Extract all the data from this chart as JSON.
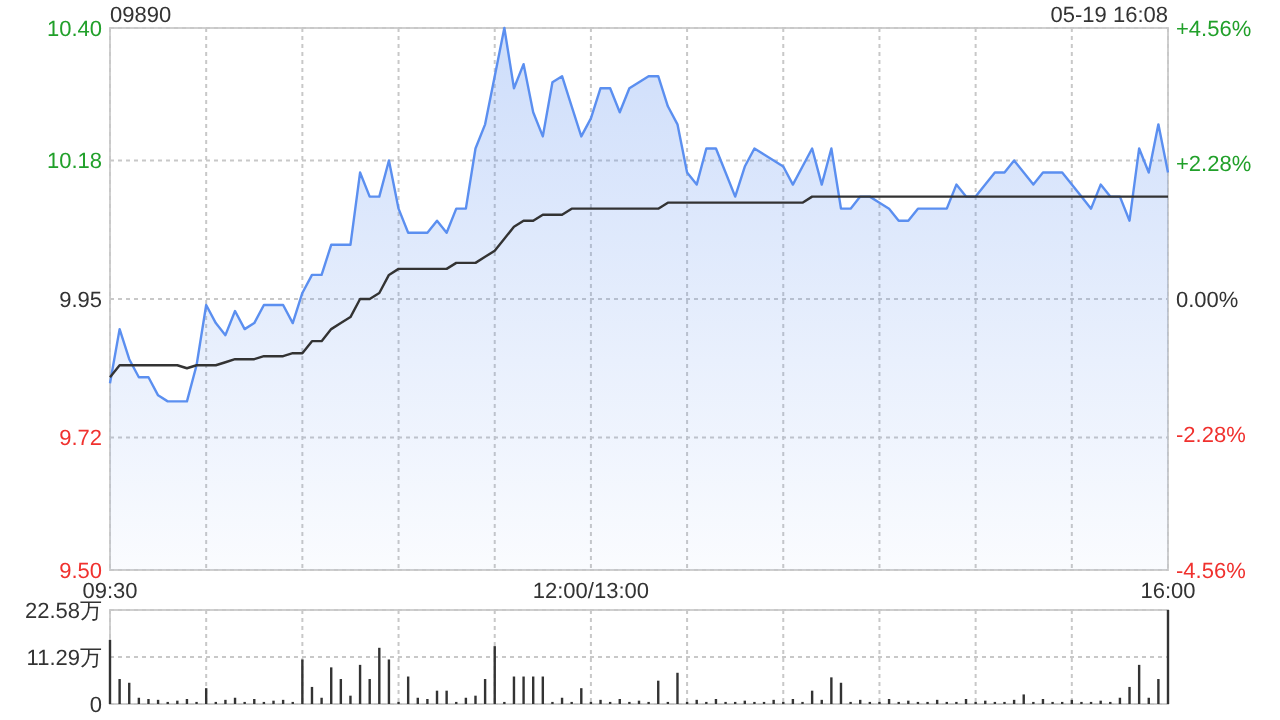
{
  "chart_data": [
    {
      "type": "area",
      "title": "09890",
      "annotations": [
        "05-19 16:08"
      ],
      "categories": [
        "09:30",
        null,
        null,
        null,
        null,
        null,
        null,
        null,
        null,
        null,
        null,
        null,
        null,
        null,
        null,
        null,
        null,
        null,
        null,
        null,
        null,
        null,
        null,
        null,
        null,
        null,
        null,
        null,
        null,
        null,
        null,
        null,
        null,
        null,
        null,
        null,
        null,
        null,
        null,
        null,
        null,
        null,
        null,
        null,
        null,
        null,
        null,
        null,
        null,
        null,
        "12:00/13:00",
        null,
        null,
        null,
        null,
        null,
        null,
        null,
        null,
        null,
        null,
        null,
        null,
        null,
        null,
        null,
        null,
        null,
        null,
        null,
        null,
        null,
        null,
        null,
        null,
        null,
        null,
        null,
        null,
        null,
        null,
        null,
        null,
        null,
        null,
        null,
        null,
        null,
        null,
        null,
        null,
        null,
        null,
        null,
        null,
        null,
        null,
        null,
        null,
        null,
        null,
        null,
        null,
        null,
        null,
        null,
        null,
        null,
        null,
        null,
        "16:00"
      ],
      "ylim": [
        9.5,
        10.4
      ],
      "yticks": [
        {
          "value": 9.5,
          "label": "9.50"
        },
        9.72,
        9.95,
        10.18,
        {
          "value": 10.4,
          "label": "10.40"
        }
      ],
      "y2lim": [
        -4.56,
        4.56
      ],
      "y2ticks": [
        {
          "value": -4.56,
          "label": "-4.56%"
        },
        {
          "value": -2.28,
          "label": "-2.28%"
        },
        {
          "value": 0,
          "label": "0.00%"
        },
        {
          "value": 2.28,
          "label": "+2.28%"
        },
        {
          "value": 4.56,
          "label": "+4.56%"
        }
      ],
      "grid": true,
      "series": [
        {
          "type": "area",
          "color": "#5b8ff0",
          "values": [
            9.81,
            9.9,
            9.85,
            9.82,
            9.82,
            9.79,
            9.78,
            9.78,
            9.78,
            9.84,
            9.94,
            9.91,
            9.89,
            9.93,
            9.9,
            9.91,
            9.94,
            9.94,
            9.94,
            9.91,
            9.96,
            9.99,
            9.99,
            10.04,
            10.04,
            10.04,
            10.16,
            10.12,
            10.12,
            10.18,
            10.1,
            10.06,
            10.06,
            10.06,
            10.08,
            10.06,
            10.1,
            10.1,
            10.2,
            10.24,
            10.32,
            10.4,
            10.3,
            10.34,
            10.26,
            10.22,
            10.31,
            10.32,
            10.27,
            10.22,
            10.25,
            10.3,
            10.3,
            10.26,
            10.3,
            10.31,
            10.32,
            10.32,
            10.27,
            10.24,
            10.16,
            10.14,
            10.2,
            10.2,
            10.16,
            10.12,
            10.17,
            10.2,
            10.19,
            10.18,
            10.17,
            10.14,
            10.17,
            10.2,
            10.14,
            10.2,
            10.1,
            10.1,
            10.12,
            10.12,
            10.11,
            10.1,
            10.08,
            10.08,
            10.1,
            10.1,
            10.1,
            10.1,
            10.14,
            10.12,
            10.12,
            10.14,
            10.16,
            10.16,
            10.18,
            10.16,
            10.14,
            10.16,
            10.16,
            10.16,
            10.14,
            10.12,
            10.1,
            10.14,
            10.12,
            10.12,
            10.08,
            10.2,
            10.16,
            10.24,
            10.16
          ]
        },
        {
          "type": "line",
          "color": "#333333",
          "values": [
            9.82,
            9.84,
            9.84,
            9.84,
            9.84,
            9.84,
            9.84,
            9.84,
            9.835,
            9.84,
            9.84,
            9.84,
            9.845,
            9.85,
            9.85,
            9.85,
            9.855,
            9.855,
            9.855,
            9.86,
            9.86,
            9.88,
            9.88,
            9.9,
            9.91,
            9.92,
            9.95,
            9.95,
            9.96,
            9.99,
            10.0,
            10.0,
            10.0,
            10.0,
            10.0,
            10.0,
            10.01,
            10.01,
            10.01,
            10.02,
            10.03,
            10.05,
            10.07,
            10.08,
            10.08,
            10.09,
            10.09,
            10.09,
            10.1,
            10.1,
            10.1,
            10.1,
            10.1,
            10.1,
            10.1,
            10.1,
            10.1,
            10.1,
            10.11,
            10.11,
            10.11,
            10.11,
            10.11,
            10.11,
            10.11,
            10.11,
            10.11,
            10.11,
            10.11,
            10.11,
            10.11,
            10.11,
            10.11,
            10.12,
            10.12,
            10.12,
            10.12,
            10.12,
            10.12,
            10.12,
            10.12,
            10.12,
            10.12,
            10.12,
            10.12,
            10.12,
            10.12,
            10.12,
            10.12,
            10.12,
            10.12,
            10.12,
            10.12,
            10.12,
            10.12,
            10.12,
            10.12,
            10.12,
            10.12,
            10.12,
            10.12,
            10.12,
            10.12,
            10.12,
            10.12,
            10.12,
            10.12,
            10.12,
            10.12,
            10.12,
            10.12
          ]
        }
      ]
    },
    {
      "type": "bar",
      "color": "#333333",
      "categories": [
        null,
        null,
        null,
        null,
        null,
        null,
        null,
        null,
        null,
        null,
        null,
        null,
        null,
        null,
        null,
        null,
        null,
        null,
        null,
        null,
        null,
        null,
        null,
        null,
        null,
        null,
        null,
        null,
        null,
        null,
        null,
        null,
        null,
        null,
        null,
        null,
        null,
        null,
        null,
        null,
        null,
        null,
        null,
        null,
        null,
        null,
        null,
        null,
        null,
        null,
        null,
        null,
        null,
        null,
        null,
        null,
        null,
        null,
        null,
        null,
        null,
        null,
        null,
        null,
        null,
        null,
        null,
        null,
        null,
        null,
        null,
        null,
        null,
        null,
        null,
        null,
        null,
        null,
        null,
        null,
        null,
        null,
        null,
        null,
        null,
        null,
        null,
        null,
        null,
        null,
        null,
        null,
        null,
        null,
        null,
        null,
        null,
        null,
        null,
        null,
        null,
        null,
        null,
        null,
        null,
        null,
        null,
        null,
        null,
        null,
        null
      ],
      "ylim": [
        0,
        22.58
      ],
      "yticks": [
        0,
        {
          "value": 11.29,
          "label": "11.29万"
        },
        {
          "value": 22.58,
          "label": "22.58万"
        }
      ],
      "grid": true,
      "values": [
        15.4,
        6.0,
        5.1,
        1.5,
        1.2,
        1.0,
        0.5,
        0.8,
        1.2,
        0.5,
        3.8,
        0.5,
        1.0,
        1.5,
        0.5,
        1.2,
        0.5,
        0.8,
        1.0,
        0.5,
        10.7,
        4.1,
        1.5,
        8.8,
        6.0,
        2.0,
        9.4,
        6.0,
        13.5,
        10.7,
        0.5,
        6.6,
        1.5,
        1.2,
        3.2,
        3.2,
        0.5,
        1.5,
        2.0,
        6.0,
        13.9,
        0.5,
        6.6,
        6.6,
        6.6,
        6.6,
        0.5,
        1.5,
        0.5,
        3.8,
        0.5,
        1.0,
        0.5,
        1.2,
        0.5,
        0.8,
        0.5,
        5.6,
        0.5,
        7.5,
        0.5,
        1.0,
        0.5,
        1.2,
        0.5,
        0.5,
        0.8,
        0.5,
        0.5,
        1.0,
        0.5,
        1.2,
        0.5,
        3.2,
        1.0,
        6.4,
        5.1,
        0.5,
        1.0,
        0.5,
        0.5,
        1.2,
        0.5,
        0.8,
        0.5,
        0.5,
        1.0,
        0.5,
        0.5,
        1.2,
        0.5,
        0.8,
        0.5,
        0.5,
        1.0,
        2.3,
        0.5,
        1.2,
        0.5,
        0.5,
        1.0,
        0.5,
        0.5,
        0.8,
        0.5,
        1.5,
        4.1,
        9.4,
        1.5,
        6.0,
        22.58
      ]
    }
  ]
}
